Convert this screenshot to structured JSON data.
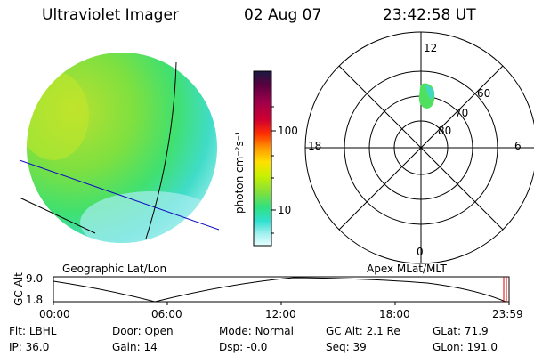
{
  "header": {
    "title": "Ultraviolet Imager",
    "date": "02 Aug 07",
    "time": "23:42:58 UT"
  },
  "colorbar": {
    "unit_label": "photon cm⁻²s⁻¹",
    "ticks": [
      "100",
      "10"
    ],
    "colors": [
      "#1a1a40",
      "#5a0040",
      "#a0004a",
      "#d00030",
      "#ff3000",
      "#ff9800",
      "#ffe000",
      "#c8f000",
      "#7ee040",
      "#30e080",
      "#30e0d0",
      "#a0f0f0",
      "#e8ffff"
    ]
  },
  "polar": {
    "lat_labels": [
      "60",
      "70",
      "80"
    ],
    "mlt_labels": {
      "top": "12",
      "left": "18",
      "right": "6",
      "bottom": "0"
    }
  },
  "labels": {
    "geographic": "Geographic Lat/Lon",
    "apex": "Apex MLat/MLT"
  },
  "altitude_plot": {
    "ylabel": "GC Alt",
    "yticks": [
      "9.0",
      "1.8"
    ],
    "xticks": [
      "00:00",
      "06:00",
      "12:00",
      "18:00",
      "23:59"
    ]
  },
  "info": {
    "row1": [
      {
        "label": "Flt:",
        "value": "LBHL"
      },
      {
        "label": "Door:",
        "value": "Open"
      },
      {
        "label": "Mode:",
        "value": "Normal"
      },
      {
        "label": "GC Alt:",
        "value": "2.1 Re"
      },
      {
        "label": "GLat:",
        "value": "71.9"
      }
    ],
    "row2": [
      {
        "label": "IP:",
        "value": "36.0"
      },
      {
        "label": "Gain:",
        "value": "14"
      },
      {
        "label": "Dsp:",
        "value": "-0.0"
      },
      {
        "label": "Seq:",
        "value": "39"
      },
      {
        "label": "GLon:",
        "value": "191.0"
      }
    ]
  }
}
